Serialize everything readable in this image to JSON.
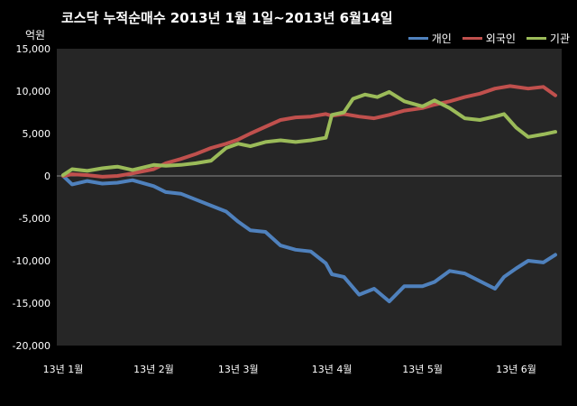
{
  "chart_data": {
    "type": "line",
    "title": "코스닥  누적순매수 2013년 1월 1일~2013년 6월14일",
    "unit": "억원",
    "ylim": [
      -20000,
      15000
    ],
    "yticks": [
      15000,
      10000,
      5000,
      0,
      -5000,
      -10000,
      -15000,
      -20000
    ],
    "ytick_labels": [
      "15,000",
      "10,000",
      "5,000",
      "0",
      "-5,000",
      "-10,000",
      "-15,000",
      "-20,000"
    ],
    "xlim": [
      "2013-01-02",
      "2013-06-14"
    ],
    "xtick_dates": [
      "2013-01-02",
      "2013-02-01",
      "2013-03-01",
      "2013-04-01",
      "2013-05-01",
      "2013-06-01"
    ],
    "xtick_labels": [
      "13년 1월",
      "13년 2월",
      "13년 3월",
      "13년 4월",
      "13년 5월",
      "13년 6월"
    ],
    "legend_position": "top-right",
    "grid": false,
    "background": "#000000",
    "plot_background": "#262626",
    "series": [
      {
        "name": "개인",
        "color": "#4f81bd",
        "points": [
          [
            "2013-01-02",
            0
          ],
          [
            "2013-01-05",
            -1000
          ],
          [
            "2013-01-10",
            -600
          ],
          [
            "2013-01-15",
            -900
          ],
          [
            "2013-01-20",
            -800
          ],
          [
            "2013-01-25",
            -500
          ],
          [
            "2013-02-01",
            -1200
          ],
          [
            "2013-02-05",
            -1900
          ],
          [
            "2013-02-10",
            -2100
          ],
          [
            "2013-02-15",
            -2800
          ],
          [
            "2013-02-20",
            -3500
          ],
          [
            "2013-02-25",
            -4200
          ],
          [
            "2013-03-01",
            -5400
          ],
          [
            "2013-03-05",
            -6400
          ],
          [
            "2013-03-10",
            -6600
          ],
          [
            "2013-03-15",
            -8200
          ],
          [
            "2013-03-20",
            -8700
          ],
          [
            "2013-03-25",
            -8900
          ],
          [
            "2013-03-30",
            -10300
          ],
          [
            "2013-04-01",
            -11600
          ],
          [
            "2013-04-05",
            -11900
          ],
          [
            "2013-04-10",
            -14000
          ],
          [
            "2013-04-15",
            -13300
          ],
          [
            "2013-04-20",
            -14800
          ],
          [
            "2013-04-25",
            -13000
          ],
          [
            "2013-05-01",
            -13000
          ],
          [
            "2013-05-05",
            -12500
          ],
          [
            "2013-05-10",
            -11200
          ],
          [
            "2013-05-15",
            -11500
          ],
          [
            "2013-05-20",
            -12400
          ],
          [
            "2013-05-25",
            -13300
          ],
          [
            "2013-05-28",
            -11900
          ],
          [
            "2013-06-01",
            -10900
          ],
          [
            "2013-06-05",
            -10000
          ],
          [
            "2013-06-10",
            -10200
          ],
          [
            "2013-06-14",
            -9300
          ]
        ]
      },
      {
        "name": "외국인",
        "color": "#c0504d",
        "points": [
          [
            "2013-01-02",
            0
          ],
          [
            "2013-01-05",
            200
          ],
          [
            "2013-01-10",
            100
          ],
          [
            "2013-01-15",
            -100
          ],
          [
            "2013-01-20",
            0
          ],
          [
            "2013-01-25",
            300
          ],
          [
            "2013-02-01",
            800
          ],
          [
            "2013-02-05",
            1500
          ],
          [
            "2013-02-10",
            2000
          ],
          [
            "2013-02-15",
            2600
          ],
          [
            "2013-02-20",
            3300
          ],
          [
            "2013-02-25",
            3800
          ],
          [
            "2013-03-01",
            4300
          ],
          [
            "2013-03-05",
            5000
          ],
          [
            "2013-03-10",
            5800
          ],
          [
            "2013-03-15",
            6600
          ],
          [
            "2013-03-20",
            6900
          ],
          [
            "2013-03-25",
            7000
          ],
          [
            "2013-03-30",
            7300
          ],
          [
            "2013-04-01",
            7100
          ],
          [
            "2013-04-05",
            7300
          ],
          [
            "2013-04-10",
            7000
          ],
          [
            "2013-04-15",
            6800
          ],
          [
            "2013-04-20",
            7200
          ],
          [
            "2013-04-25",
            7700
          ],
          [
            "2013-05-01",
            8000
          ],
          [
            "2013-05-05",
            8400
          ],
          [
            "2013-05-10",
            8800
          ],
          [
            "2013-05-15",
            9300
          ],
          [
            "2013-05-20",
            9700
          ],
          [
            "2013-05-25",
            10300
          ],
          [
            "2013-05-30",
            10600
          ],
          [
            "2013-06-05",
            10300
          ],
          [
            "2013-06-10",
            10500
          ],
          [
            "2013-06-14",
            9500
          ]
        ]
      },
      {
        "name": "기관",
        "color": "#9bbb59",
        "points": [
          [
            "2013-01-02",
            100
          ],
          [
            "2013-01-05",
            800
          ],
          [
            "2013-01-10",
            600
          ],
          [
            "2013-01-15",
            900
          ],
          [
            "2013-01-20",
            1100
          ],
          [
            "2013-01-25",
            700
          ],
          [
            "2013-02-01",
            1300
          ],
          [
            "2013-02-05",
            1200
          ],
          [
            "2013-02-10",
            1300
          ],
          [
            "2013-02-15",
            1500
          ],
          [
            "2013-02-20",
            1800
          ],
          [
            "2013-02-25",
            3300
          ],
          [
            "2013-03-01",
            3800
          ],
          [
            "2013-03-05",
            3500
          ],
          [
            "2013-03-10",
            4000
          ],
          [
            "2013-03-15",
            4200
          ],
          [
            "2013-03-20",
            4000
          ],
          [
            "2013-03-25",
            4200
          ],
          [
            "2013-03-30",
            4500
          ],
          [
            "2013-04-01",
            7200
          ],
          [
            "2013-04-05",
            7500
          ],
          [
            "2013-04-08",
            9100
          ],
          [
            "2013-04-12",
            9600
          ],
          [
            "2013-04-16",
            9300
          ],
          [
            "2013-04-20",
            9900
          ],
          [
            "2013-04-25",
            8800
          ],
          [
            "2013-05-01",
            8200
          ],
          [
            "2013-05-05",
            8900
          ],
          [
            "2013-05-10",
            8000
          ],
          [
            "2013-05-15",
            6800
          ],
          [
            "2013-05-20",
            6600
          ],
          [
            "2013-05-25",
            7000
          ],
          [
            "2013-05-28",
            7300
          ],
          [
            "2013-06-01",
            5700
          ],
          [
            "2013-06-05",
            4600
          ],
          [
            "2013-06-10",
            4900
          ],
          [
            "2013-06-14",
            5200
          ]
        ]
      }
    ]
  }
}
